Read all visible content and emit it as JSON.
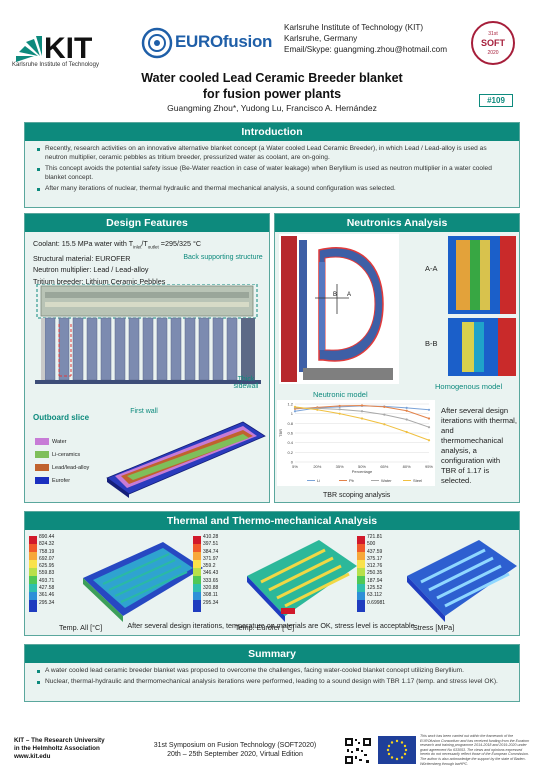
{
  "header": {
    "kit_name": "KIT",
    "kit_subtitle": "Karlsruhe Institute of Technology",
    "eurofusion": "EUROfusion",
    "contact_lines": [
      "Karlsruhe Institute of Technology (KIT)",
      "Karlsruhe, Germany",
      "Email/Skype: guangming.zhou@hotmail.com"
    ],
    "soft_badge": [
      "31st",
      "SOFT",
      "2020"
    ],
    "title_line1": "Water cooled Lead Ceramic Breeder blanket",
    "title_line2": "for fusion power plants",
    "authors": "Guangming Zhou*, Yudong Lu, Francisco A. Hernández",
    "poster_number": "#109"
  },
  "intro": {
    "heading": "Introduction",
    "bullets": [
      "Recently, research activities on an innovative alternative blanket concept (a Water cooled Lead Ceramic Breeder), in which Lead / Lead-alloy is used as neutron multiplier, ceramic pebbles as tritium breeder, pressurized water as coolant, are on-going.",
      "This concept avoids the potential safety issue (Be-Water reaction in case of water leakage) when Beryllium is used as neutron multiplier in a water cooled blanket concept.",
      "After many iterations of nuclear, thermal hydraulic and thermal mechanical analysis, a sound configuration was selected."
    ]
  },
  "design": {
    "heading": "Design Features",
    "coolant": "Coolant: 15.5 MPa water with T",
    "coolant_sub1": "inlet",
    "coolant_mid": "/T",
    "coolant_sub2": "outlet",
    "coolant_end": " =295/325 °C",
    "structural": "Structural material: EUROFER",
    "multiplier": "Neutron multiplier: Lead / Lead-alloy",
    "breeder": "Tritium breeder: Lithium Ceramic Pebbles",
    "callout_back": "Back supporting structure",
    "callout_thick": "Thick sidewall",
    "callout_firstwall": "First wall",
    "outboard_label": "Outboard slice",
    "legend": [
      {
        "label": "Water",
        "color": "#c77bd6"
      },
      {
        "label": "Li-ceramics",
        "color": "#7fbf5a"
      },
      {
        "label": "Lead/lead-alloy",
        "color": "#c0622e"
      },
      {
        "label": "Eurofer",
        "color": "#1a2fbf"
      }
    ]
  },
  "neutron": {
    "heading": "Neutronics Analysis",
    "label_aa": "A-A",
    "label_bb": "B-B",
    "label_b": "B",
    "label_a": "A",
    "homogenous_label": "Homogenous model",
    "neutronic_model_label": "Neutronic model",
    "scoping_caption": "TBR scoping analysis",
    "result_text": "After several design iterations with thermal, and thermomechanical analysis, a configuration with TBR of 1.17 is selected."
  },
  "chart_data": {
    "type": "line",
    "title": "",
    "xlabel": "Percentage",
    "ylabel": "TBR",
    "x": [
      "5%",
      "20%",
      "35%",
      "50%",
      "65%",
      "80%",
      "95%"
    ],
    "ylim": [
      0,
      1.2
    ],
    "yticks": [
      "0",
      "0.2",
      "0.4",
      "0.6",
      "0.8",
      "1",
      "1.2"
    ],
    "series": [
      {
        "name": "Li",
        "color": "#7aa3d8",
        "values": [
          1.05,
          1.12,
          1.14,
          1.16,
          1.15,
          1.12,
          1.08
        ]
      },
      {
        "name": "Pb",
        "color": "#e3834a",
        "values": [
          1.1,
          1.13,
          1.16,
          1.17,
          1.14,
          1.06,
          0.9
        ]
      },
      {
        "name": "Water",
        "color": "#a8a8a8",
        "values": [
          1.12,
          1.11,
          1.09,
          1.05,
          0.98,
          0.88,
          0.72
        ]
      },
      {
        "name": "Steel",
        "color": "#f0c040",
        "values": [
          1.14,
          1.08,
          1.0,
          0.9,
          0.78,
          0.62,
          0.45
        ]
      }
    ],
    "grid": true,
    "legend": "bottom"
  },
  "thermal": {
    "heading": "Thermal and Thermo-mechanical Analysis",
    "colorbar1": [
      "890.44",
      "824.32",
      "758.19",
      "692.07",
      "625.95",
      "559.83",
      "493.71",
      "427.58",
      "361.46",
      "295.34"
    ],
    "colorbar2": [
      "410.28",
      "397.51",
      "384.74",
      "371.97",
      "359.2",
      "346.43",
      "333.65",
      "320.88",
      "308.11",
      "295.34"
    ],
    "colorbar3": [
      "721.81",
      "500",
      "437.59",
      "375.17",
      "312.76",
      "250.35",
      "187.94",
      "125.52",
      "63.112",
      "0.69981"
    ],
    "caption1": "Temp. All [°C]",
    "caption2": "Temp. Eurofer [°C]",
    "caption3": "Stress [MPa]",
    "conclusion": "After several design iterations, temperature on materials are OK, stress level is acceptable."
  },
  "summary": {
    "heading": "Summary",
    "bullets": [
      "A water cooled lead ceramic breeder blanket was proposed to overcome the challenges, facing water-cooled blanket concept utilizing Beryllium.",
      "Nuclear, thermal-hydraulic and thermomechanical analysis iterations were performed, leading to a sound design with TBR 1.17 (temp. and stress level OK)."
    ]
  },
  "footer": {
    "kit_line1": "KIT – The Research University",
    "kit_line2": "in the Helmholtz Association",
    "kit_line3": "www.kit.edu",
    "symposium_line1": "31st Symposium on Fusion Technology (SOFT2020)",
    "symposium_line2": "20th – 25th September 2020, Virtual Edition",
    "eu_note": "This work has been carried out within the framework of the EUROfusion Consortium and has received funding from the Euratom research and training programme 2014-2018 and 2019-2020 under grant agreement No 633053. The views and opinions expressed herein do not necessarily reflect those of the European Commission. The author is also acknowledge the support by the state of Baden- Württemberg through bwHPC."
  },
  "colors": {
    "teal": "#0d8a7d",
    "panel_bg": "#eaf3f1",
    "euro_blue": "#1f5fa8"
  }
}
